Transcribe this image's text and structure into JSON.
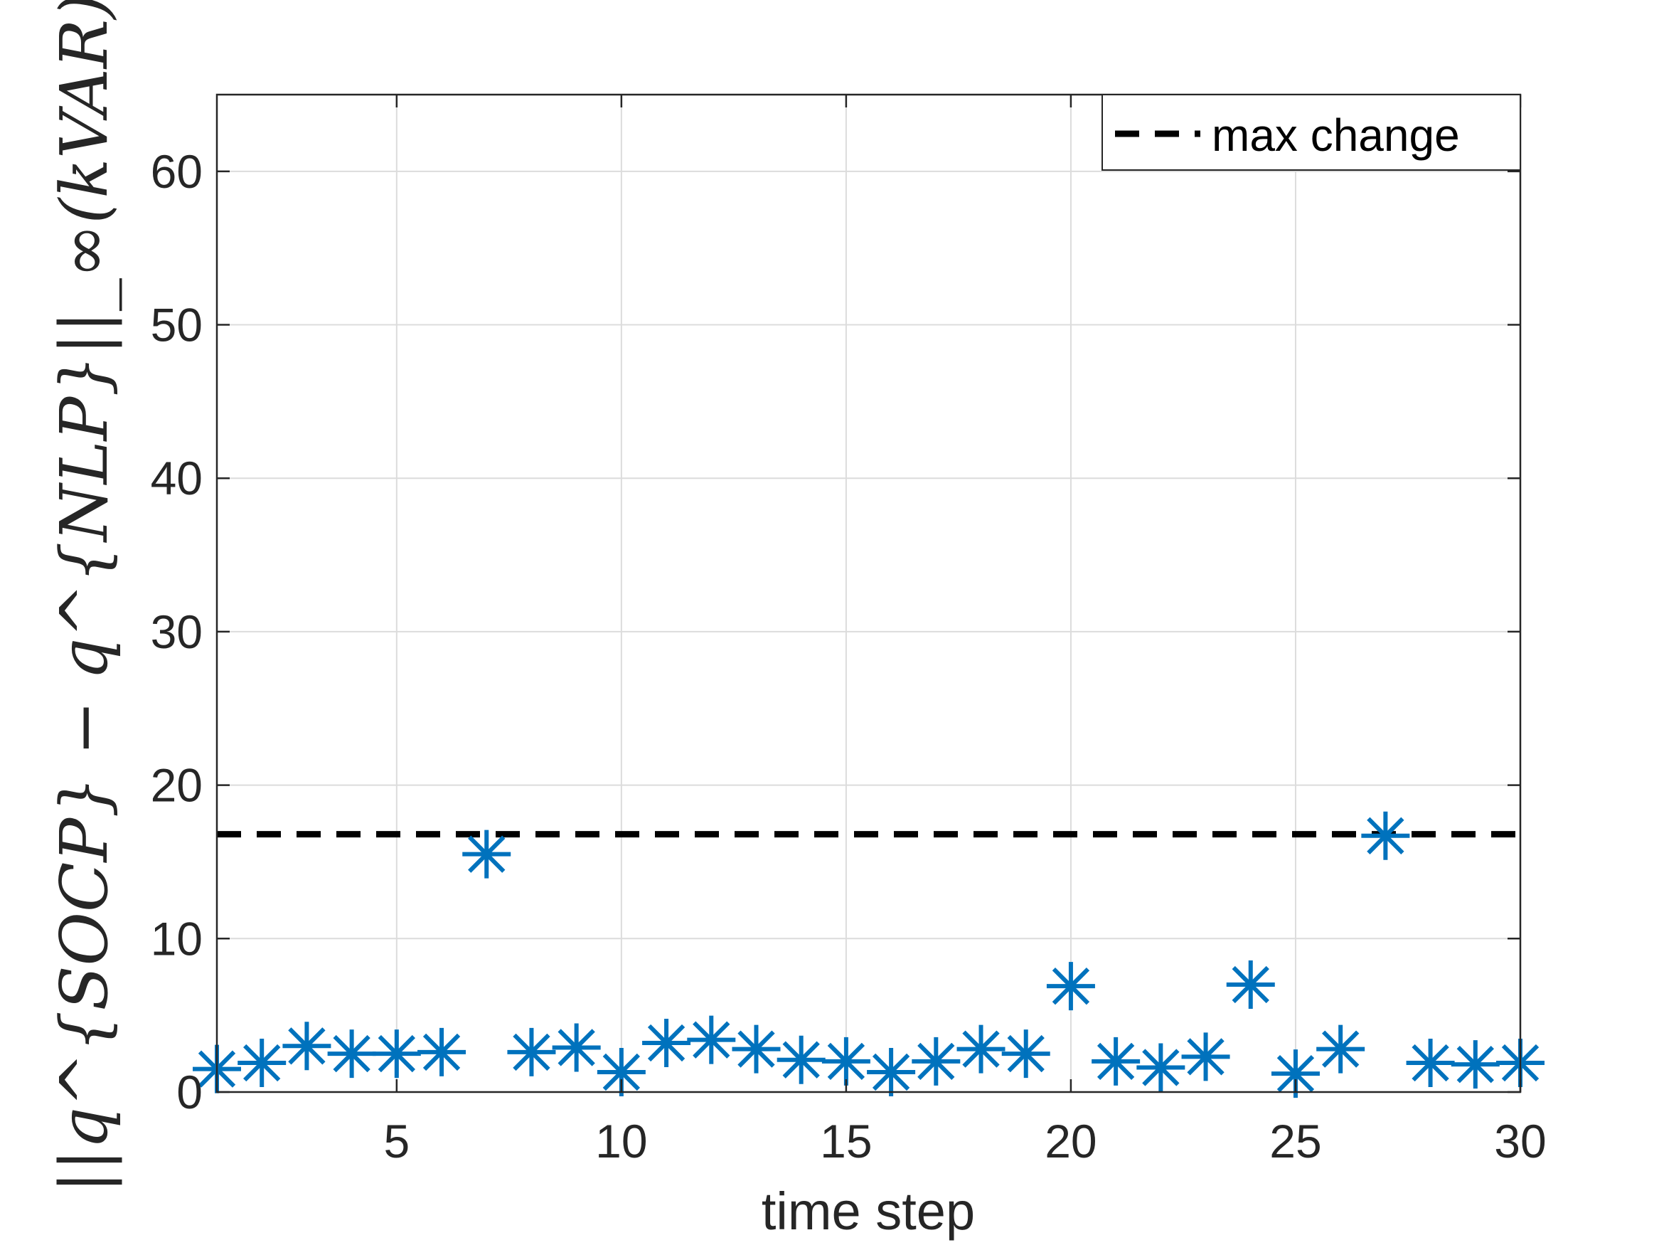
{
  "chart_data": {
    "type": "scatter",
    "title": "",
    "xlabel": "time step",
    "ylabel": "||q^{SOCP} − q^{NLP}||_∞(kVAR)",
    "xlim": [
      1,
      30
    ],
    "ylim": [
      0,
      65
    ],
    "xticks": [
      5,
      10,
      15,
      20,
      25,
      30
    ],
    "yticks": [
      0,
      10,
      20,
      30,
      40,
      50,
      60
    ],
    "grid": true,
    "legend_position": "top-right",
    "series": [
      {
        "marker": "asterisk",
        "color": "#0072BD",
        "x": [
          1,
          2,
          3,
          4,
          5,
          6,
          7,
          8,
          9,
          10,
          11,
          12,
          13,
          14,
          15,
          16,
          17,
          18,
          19,
          20,
          21,
          22,
          23,
          24,
          25,
          26,
          27,
          28,
          29,
          30
        ],
        "y": [
          1.5,
          1.9,
          3.0,
          2.5,
          2.5,
          2.6,
          15.5,
          2.6,
          2.9,
          1.3,
          3.2,
          3.4,
          2.8,
          2.1,
          2.0,
          1.3,
          2.0,
          2.8,
          2.5,
          6.9,
          2.0,
          1.6,
          2.3,
          7.0,
          1.2,
          2.8,
          16.7,
          1.9,
          1.8,
          1.9
        ]
      }
    ],
    "reference_lines": [
      {
        "name": "max change",
        "y": 16.8,
        "style": "dashed",
        "color": "#000000"
      }
    ],
    "legend": [
      "max change"
    ]
  }
}
